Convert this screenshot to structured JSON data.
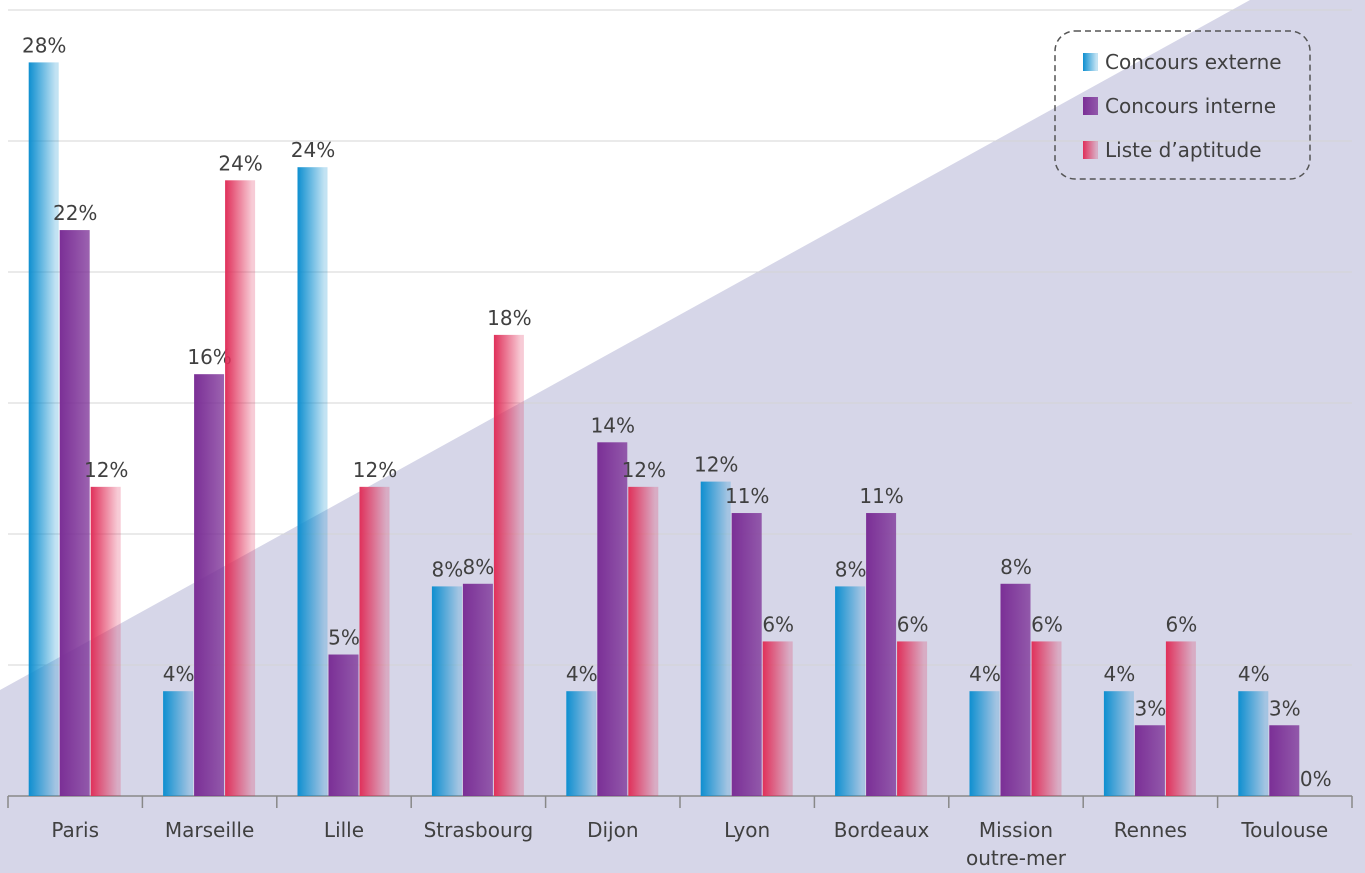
{
  "chart_data": {
    "type": "bar",
    "categories": [
      "Paris",
      "Marseille",
      "Lille",
      "Strasbourg",
      "Dijon",
      "Lyon",
      "Bordeaux",
      "Mission outre-mer",
      "Rennes",
      "Toulouse"
    ],
    "series": [
      {
        "name": "Concours externe",
        "color": "#0e8fd0",
        "values": [
          28.0,
          4.0,
          24.0,
          8.0,
          4.0,
          12.0,
          8.0,
          4.0,
          4.0,
          4.0
        ],
        "value_labels": [
          "28%",
          "4%",
          "24%",
          "8%",
          "4%",
          "12%",
          "8%",
          "4%",
          "4%",
          "4%"
        ]
      },
      {
        "name": "Concours interne",
        "color": "#7b2f96",
        "values": [
          21.6,
          16.1,
          5.4,
          8.1,
          13.5,
          10.8,
          10.8,
          8.1,
          2.7,
          2.7
        ],
        "value_labels": [
          "22%",
          "16%",
          "5%",
          "8%",
          "14%",
          "11%",
          "11%",
          "8%",
          "3%",
          "3%"
        ]
      },
      {
        "name": "Liste d’aptitude",
        "color": "#e0305a",
        "values": [
          11.8,
          23.5,
          11.8,
          17.6,
          11.8,
          5.9,
          5.9,
          5.9,
          5.9,
          0
        ],
        "value_labels": [
          "12%",
          "24%",
          "12%",
          "18%",
          "12%",
          "6%",
          "6%",
          "6%",
          "6%",
          "0%"
        ]
      }
    ],
    "ylim": [
      0,
      30
    ],
    "yticks": [
      0,
      5,
      10,
      15,
      20,
      25,
      30
    ],
    "grid": true,
    "legend": "top-right"
  }
}
